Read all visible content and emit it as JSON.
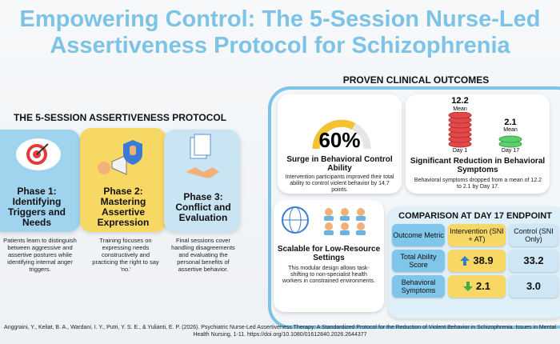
{
  "header": {
    "title": "Empowering Control: The 5-Session Nurse-Led Assertiveness Protocol for Schizophrenia"
  },
  "protocol": {
    "heading": "THE 5-SESSION ASSERTIVENESS PROTOCOL",
    "phases": [
      {
        "label": "Phase 1: Identifying Triggers and Needs",
        "description": "Patients learn to distinguish between aggressive and assertive postures while identifying internal anger triggers."
      },
      {
        "label": "Phase 2: Mastering Assertive Expression",
        "description": "Training focuses on expressing needs constructively and practicing the right to say 'no.'"
      },
      {
        "label": "Phase 3: Conflict and Evaluation",
        "description": "Final sessions cover handling disagreements and evaluating the personal benefits of assertive behavior."
      }
    ]
  },
  "outcomes": {
    "heading": "PROVEN CLINICAL OUTCOMES",
    "control": {
      "value": "60%",
      "title": "Surge in Behavioral Control Ability",
      "text": "Intervention participants improved their total ability to control violent behavior by 14.7 points."
    },
    "symptoms": {
      "before": "12.2",
      "after": "2.1",
      "mean": "Mean",
      "before_label": "Day 1",
      "after_label": "Day 17",
      "title": "Significant Reduction in Behavioral Symptoms",
      "text": "Behavioral symptoms dropped from a mean of 12.2 to 2.1 by Day 17."
    },
    "scalable": {
      "title": "Scalable for Low-Resource Settings",
      "text": "This modular design allows task-shifting to non-specialist health workers in constrained environments."
    }
  },
  "comparison": {
    "heading": "COMPARISON AT DAY 17 ENDPOINT",
    "columns": [
      "Outcome Metric",
      "Intervention (SNI + AT)",
      "Control (SNI Only)"
    ],
    "rows": [
      [
        "Total Ability Score",
        "38.9",
        "33.2"
      ],
      [
        "Behavioral Symptoms",
        "2.1",
        "3.0"
      ]
    ]
  },
  "citation": "Anggraini, Y., Keliat, B. A., Wardani, I. Y., Putri, Y. S. E., & Yulianti, E. P. (2026). Psychiatric Nurse-Led Assertiveness Therapy: A Standardized Protocol for the Reduction of Violent Behavior in Schizophrenia. Issues in Mental Health Nursing, 1-11. https://doi.org/10.1080/01612840.2026.2644377"
}
